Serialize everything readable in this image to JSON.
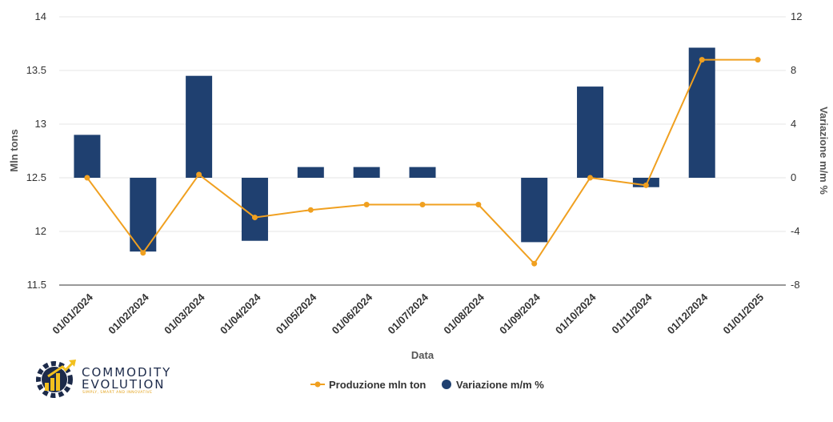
{
  "chart_data": {
    "type": "bar+line",
    "categories": [
      "01/01/2024",
      "01/02/2024",
      "01/03/2024",
      "01/04/2024",
      "01/05/2024",
      "01/06/2024",
      "01/07/2024",
      "01/08/2024",
      "01/09/2024",
      "01/10/2024",
      "01/11/2024",
      "01/12/2024",
      "01/01/2025"
    ],
    "xlabel": "Data",
    "ylabel_left": "Mln tons",
    "ylabel_right": "Variazione m/m %",
    "ylim_left": [
      11.5,
      14
    ],
    "yticks_left": [
      "11.5",
      "12",
      "12.5",
      "13",
      "13.5",
      "14"
    ],
    "ylim_right": [
      -8,
      12
    ],
    "yticks_right": [
      "-8",
      "-4",
      "0",
      "4",
      "8",
      "12"
    ],
    "grid": true,
    "legend_position": "bottom",
    "series": [
      {
        "name": "Produzione mln ton",
        "type": "line",
        "axis": "left",
        "color": "#f0a020",
        "values": [
          12.5,
          11.8,
          12.53,
          12.13,
          12.2,
          12.25,
          12.25,
          12.25,
          11.7,
          12.5,
          12.43,
          13.6,
          13.6
        ]
      },
      {
        "name": "Variazione m/m %",
        "type": "bar",
        "axis": "right",
        "color": "#1f4070",
        "values": [
          3.2,
          -5.5,
          7.6,
          -4.7,
          0.8,
          0.8,
          0.8,
          0,
          -4.8,
          6.8,
          -0.7,
          9.7,
          0
        ]
      }
    ]
  },
  "logo": {
    "name": "COMMODITY EVOLUTION",
    "line1": "COMMODITY",
    "line2": "EVOLUTION",
    "tagline": "SIMPLY, SMART AND INNOVATIVE",
    "icon": "gear-chart-logo"
  }
}
